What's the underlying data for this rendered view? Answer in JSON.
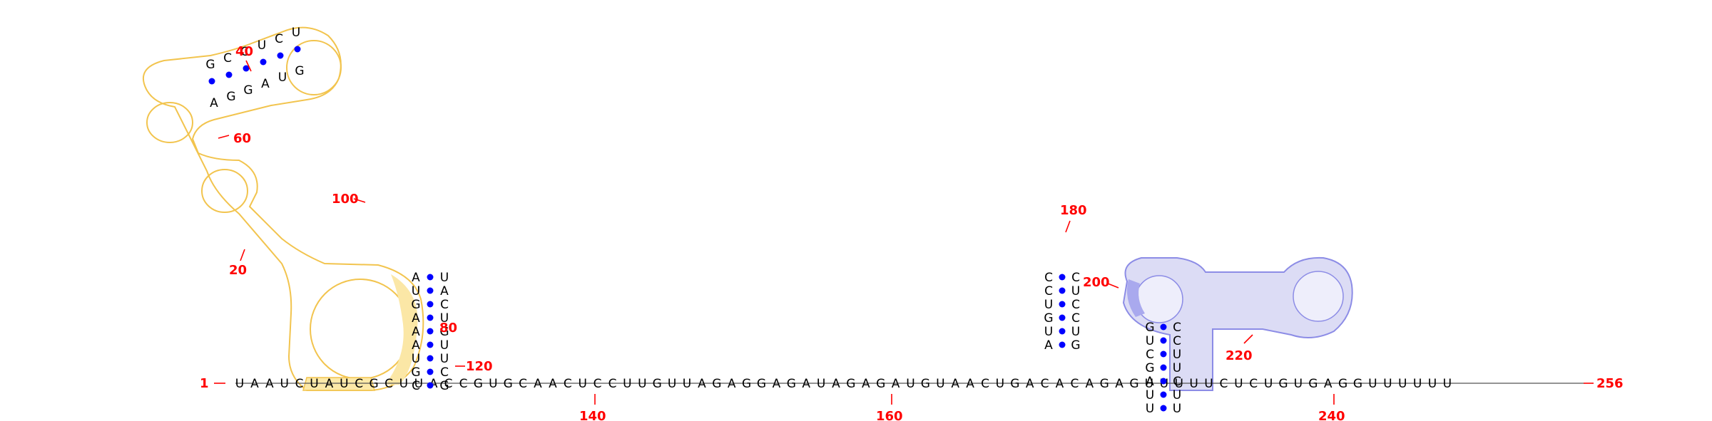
{
  "structure": {
    "length": 256,
    "end_labels": {
      "start": "1",
      "end": "256"
    },
    "position_labels": [
      "20",
      "40",
      "60",
      "80",
      "100",
      "120",
      "140",
      "160",
      "180",
      "200",
      "220",
      "240"
    ]
  },
  "colors": {
    "nucleotide_text": "#000000",
    "base_pair_dot": "#0000ff",
    "position_label": "#ff0000",
    "highlight_orange_stroke": "#f2c44e",
    "highlight_orange_fill": "#fbe7a6",
    "highlight_blue_stroke": "#8c8ce6",
    "highlight_blue_fill": "#dcdcf5"
  },
  "helices": {
    "p1": {
      "left": [
        "A",
        "U",
        "G",
        "A",
        "A",
        "A",
        "U",
        "G",
        "C"
      ],
      "right": [
        "U",
        "A",
        "C",
        "U",
        "G",
        "U",
        "U",
        "C",
        "G"
      ]
    },
    "p2": {
      "left": [
        "G",
        "C",
        "C",
        "U",
        "C",
        "U"
      ],
      "right": [
        "A",
        "G",
        "G",
        "A",
        "U",
        "G"
      ]
    },
    "p3": {
      "left": [
        "C",
        "C",
        "U",
        "G",
        "U",
        "A"
      ],
      "right": [
        "C",
        "U",
        "C",
        "C",
        "U",
        "G"
      ]
    },
    "p4": {
      "left": [
        "G",
        "U",
        "C",
        "G",
        "A",
        "U",
        "U"
      ],
      "right": [
        "C",
        "C",
        "U",
        "U",
        "C",
        "U",
        "U"
      ]
    }
  },
  "backbone_3prime": "UAAUCUAUCGCUUACCGUGCAACUCCUUGUUAGAGGAGAUAGAGAUGUAACUGACACAGAGUUUUUCUCUGUGAGGUUUUUU"
}
